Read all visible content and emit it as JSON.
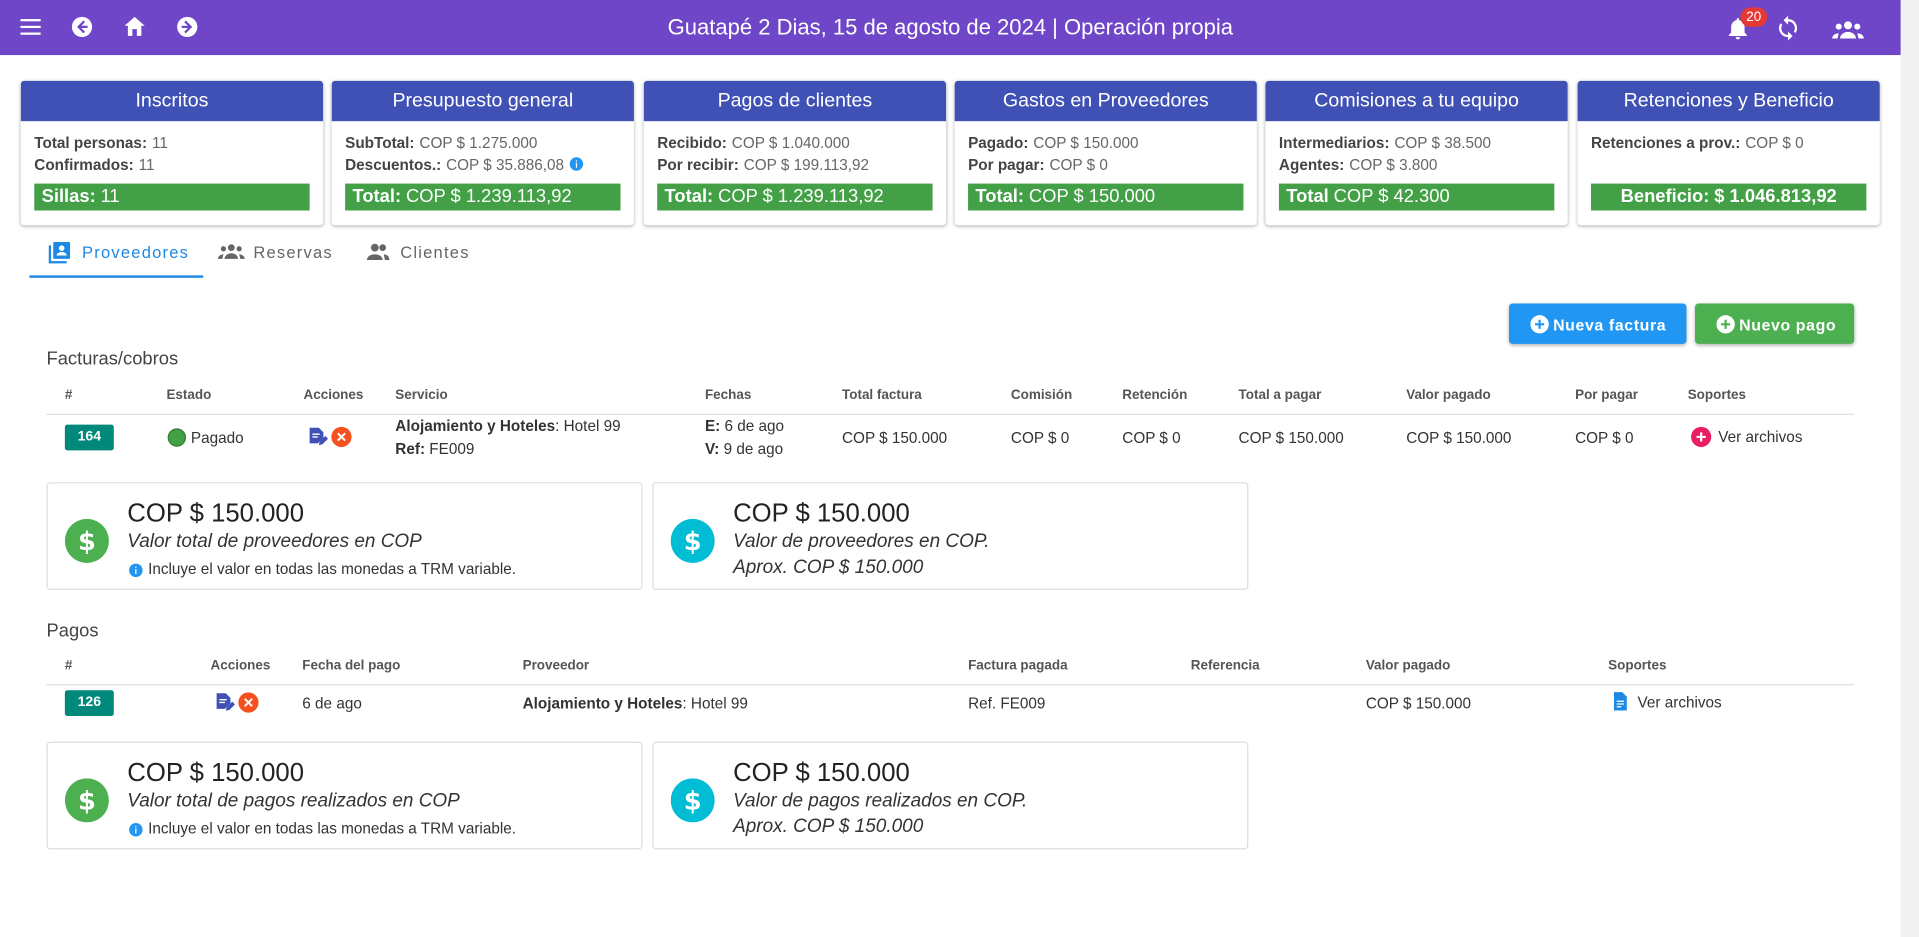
{
  "header": {
    "title": "Guatapé 2 Dias, 15 de agosto de 2024 | Operación propia",
    "notifications": "20"
  },
  "cards": [
    {
      "title": "Inscritos",
      "lines": [
        {
          "label": "Total personas:",
          "value": "11"
        },
        {
          "label": "Confirmados:",
          "value": "11"
        }
      ],
      "total": {
        "label": "Sillas:",
        "value": "11"
      }
    },
    {
      "title": "Presupuesto general",
      "lines": [
        {
          "label": "SubTotal:",
          "value": "COP $ 1.275.000"
        },
        {
          "label": "Descuentos.:",
          "value": "COP $ 35.886,08"
        }
      ],
      "total": {
        "label": "Total:",
        "value": "COP $ 1.239.113,92"
      }
    },
    {
      "title": "Pagos de clientes",
      "lines": [
        {
          "label": "Recibido:",
          "value": "COP $ 1.040.000"
        },
        {
          "label": "Por recibir:",
          "value": "COP $ 199.113,92"
        }
      ],
      "total": {
        "label": "Total:",
        "value": "COP $ 1.239.113,92"
      }
    },
    {
      "title": "Gastos en Proveedores",
      "lines": [
        {
          "label": "Pagado:",
          "value": "COP $ 150.000"
        },
        {
          "label": "Por pagar:",
          "value": "COP $ 0"
        }
      ],
      "total": {
        "label": "Total:",
        "value": "COP $ 150.000"
      }
    },
    {
      "title": "Comisiones a tu equipo",
      "lines": [
        {
          "label": "Intermediarios:",
          "value": "COP $ 38.500"
        },
        {
          "label": "Agentes:",
          "value": "COP $ 3.800"
        }
      ],
      "total": {
        "label": "Total",
        "value": "COP $ 42.300"
      }
    },
    {
      "title": "Retenciones y Beneficio",
      "lines": [
        {
          "label": "Retenciones a prov.:",
          "value": "COP $ 0"
        }
      ],
      "total": {
        "label": "Beneficio:",
        "value": "$ 1.046.813,92"
      }
    }
  ],
  "tabs": [
    "Proveedores",
    "Reservas",
    "Clientes"
  ],
  "buttons": [
    "Nueva factura",
    "Nuevo pago"
  ],
  "invoices": {
    "title": "Facturas/cobros",
    "columns": [
      "#",
      "Estado",
      "Acciones",
      "Servicio",
      "Fechas",
      "Total factura",
      "Comisión",
      "Retención",
      "Total a pagar",
      "Valor pagado",
      "Por pagar",
      "Soportes"
    ],
    "rows": [
      {
        "id": "164",
        "status": "Pagado",
        "service": [
          {
            "label": "Alojamiento y Hoteles",
            "value": ": Hotel 99"
          },
          {
            "label": "Ref:",
            "value": " FE009"
          }
        ],
        "dates": [
          {
            "label": "E:",
            "value": " 6 de ago"
          },
          {
            "label": "V:",
            "value": " 9 de ago"
          }
        ],
        "total": "COP $ 150.000",
        "commission": "COP $ 0",
        "retention": "COP $ 0",
        "to_pay": "COP $ 150.000",
        "paid": "COP $ 150.000",
        "pending": "COP $ 0",
        "supports": "Ver archivos"
      }
    ],
    "summary": [
      {
        "amount": "COP $ 150.000",
        "desc": "Valor total de proveedores en COP",
        "note": "Incluye el valor en todas las monedas a TRM variable."
      },
      {
        "amount": "COP $ 150.000",
        "desc": "Valor de proveedores en COP.",
        "approx": "Aprox. COP $ 150.000"
      }
    ]
  },
  "payments": {
    "title": "Pagos",
    "columns": [
      "#",
      "Acciones",
      "Fecha del pago",
      "Proveedor",
      "Factura pagada",
      "Referencia",
      "Valor pagado",
      "Soportes"
    ],
    "rows": [
      {
        "id": "126",
        "date": "6 de ago",
        "provider": {
          "label": "Alojamiento y Hoteles",
          "value": ": Hotel 99"
        },
        "invoice": "Ref. FE009",
        "paid": "COP $ 150.000",
        "supports": "Ver archivos"
      }
    ],
    "summary": [
      {
        "amount": "COP $ 150.000",
        "desc": "Valor total de pagos realizados en COP",
        "note": "Incluye el valor en todas las monedas a TRM variable."
      },
      {
        "amount": "COP $ 150.000",
        "desc": "Valor de pagos realizados en COP.",
        "approx": "Aprox. COP $ 150.000"
      }
    ]
  }
}
